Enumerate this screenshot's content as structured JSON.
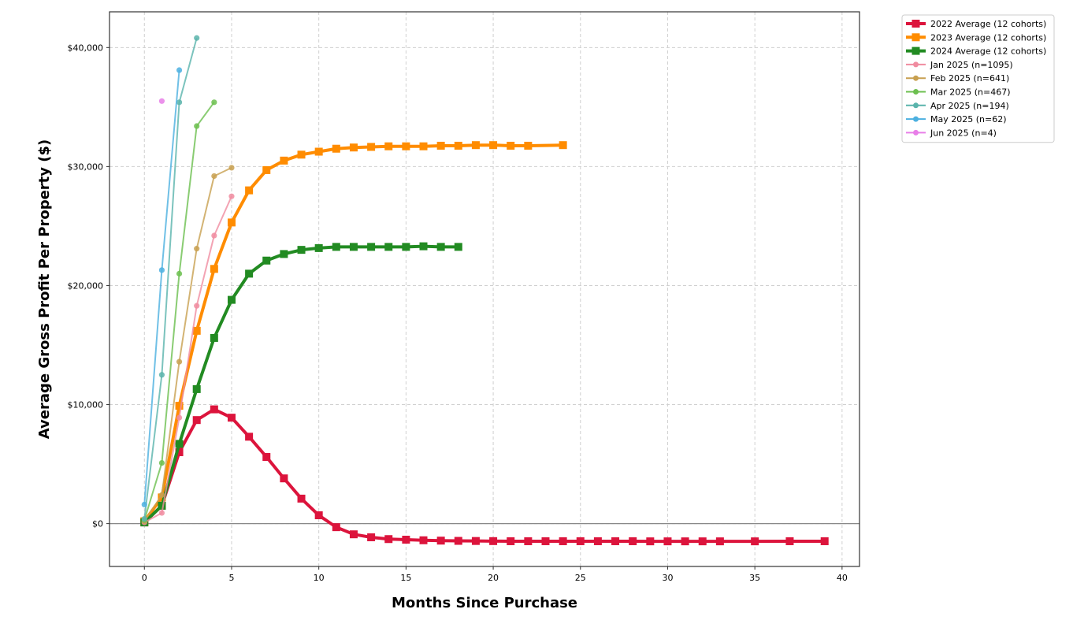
{
  "chart_data": {
    "type": "line",
    "title": "",
    "xlabel": "Months Since Purchase",
    "ylabel": "Average Gross Profit Per Property ($)",
    "xlim": [
      -2,
      41
    ],
    "ylim": [
      -3600,
      43000
    ],
    "xticks": [
      0,
      5,
      10,
      15,
      20,
      25,
      30,
      35,
      40
    ],
    "xtick_labels": [
      "0",
      "5",
      "10",
      "15",
      "20",
      "25",
      "30",
      "35",
      "40"
    ],
    "yticks": [
      0,
      10000,
      20000,
      30000,
      40000
    ],
    "ytick_labels": [
      "$0",
      "$10,000",
      "$20,000",
      "$30,000",
      "$40,000"
    ],
    "grid": true,
    "zero_line": true,
    "legend_position": "outside top-right",
    "series": [
      {
        "name": "2022 Average (12 cohorts)",
        "color": "#dc143c",
        "marker": "square",
        "style": "bold",
        "x": [
          0,
          1,
          2,
          3,
          4,
          5,
          6,
          7,
          8,
          9,
          10,
          11,
          12,
          13,
          14,
          15,
          16,
          17,
          18,
          19,
          20,
          21,
          22,
          23,
          24,
          25,
          26,
          27,
          28,
          29,
          30,
          31,
          32,
          33,
          35,
          37,
          39
        ],
        "y": [
          100,
          1500,
          6000,
          8700,
          9600,
          8900,
          7300,
          5600,
          3800,
          2100,
          700,
          -300,
          -900,
          -1150,
          -1300,
          -1350,
          -1400,
          -1430,
          -1450,
          -1460,
          -1470,
          -1480,
          -1480,
          -1480,
          -1480,
          -1480,
          -1480,
          -1480,
          -1480,
          -1490,
          -1490,
          -1490,
          -1490,
          -1490,
          -1490,
          -1480,
          -1480
        ]
      },
      {
        "name": "2023 Average (12 cohorts)",
        "color": "#ff8c00",
        "marker": "square",
        "style": "bold",
        "x": [
          0,
          1,
          2,
          3,
          4,
          5,
          6,
          7,
          8,
          9,
          10,
          11,
          12,
          13,
          14,
          15,
          16,
          17,
          18,
          19,
          20,
          21,
          22,
          24
        ],
        "y": [
          200,
          2200,
          9900,
          16200,
          21400,
          25300,
          28000,
          29700,
          30500,
          31000,
          31250,
          31500,
          31600,
          31650,
          31700,
          31700,
          31700,
          31750,
          31750,
          31800,
          31800,
          31750,
          31750,
          31800
        ]
      },
      {
        "name": "2024 Average (12 cohorts)",
        "color": "#228b22",
        "marker": "square",
        "style": "bold",
        "x": [
          0,
          1,
          2,
          3,
          4,
          5,
          6,
          7,
          8,
          9,
          10,
          11,
          12,
          13,
          14,
          15,
          16,
          17,
          18
        ],
        "y": [
          100,
          1500,
          6700,
          11300,
          15600,
          18800,
          21000,
          22100,
          22650,
          23000,
          23150,
          23250,
          23250,
          23250,
          23250,
          23250,
          23300,
          23250,
          23250
        ]
      },
      {
        "name": "Jan 2025 (n=1095)",
        "color": "#f08ca0",
        "marker": "circle",
        "style": "thin",
        "x": [
          0,
          1,
          2,
          3,
          4,
          5
        ],
        "y": [
          100,
          900,
          8900,
          18300,
          24200,
          27500
        ]
      },
      {
        "name": "Feb 2025 (n=641)",
        "color": "#c8a050",
        "marker": "circle",
        "style": "thin",
        "x": [
          0,
          1,
          2,
          3,
          4,
          5
        ],
        "y": [
          200,
          2400,
          13600,
          23100,
          29200,
          29900
        ]
      },
      {
        "name": "Mar 2025 (n=467)",
        "color": "#6cbf4f",
        "marker": "circle",
        "style": "thin",
        "x": [
          0,
          1,
          2,
          3,
          4
        ],
        "y": [
          300,
          5100,
          21000,
          33400,
          35400
        ]
      },
      {
        "name": "Apr 2025 (n=194)",
        "color": "#5ab4ac",
        "marker": "circle",
        "style": "thin",
        "x": [
          0,
          1,
          2,
          3
        ],
        "y": [
          400,
          12500,
          35400,
          40800
        ]
      },
      {
        "name": "May 2025 (n=62)",
        "color": "#4cb0e0",
        "marker": "circle",
        "style": "thin",
        "x": [
          0,
          1,
          2
        ],
        "y": [
          1600,
          21300,
          38100
        ]
      },
      {
        "name": "Jun 2025 (n=4)",
        "color": "#e87ee8",
        "marker": "circle",
        "style": "thin",
        "x": [
          1
        ],
        "y": [
          35500
        ]
      }
    ]
  }
}
